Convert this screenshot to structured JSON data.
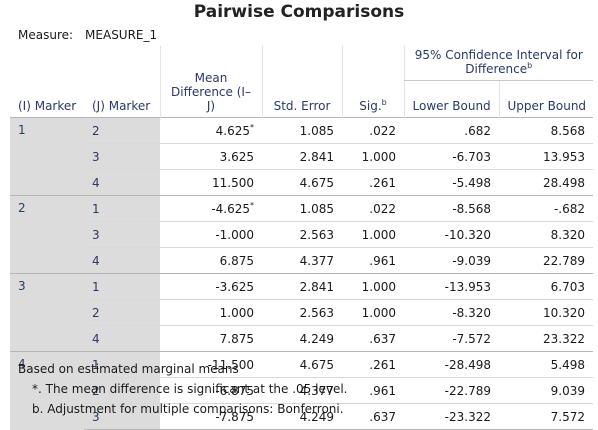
{
  "title": "Pairwise Comparisons",
  "measure": {
    "label": "Measure:",
    "value": "MEASURE_1"
  },
  "headers": {
    "i_marker": "(I) Marker",
    "j_marker": "(J) Marker",
    "mean_diff": "Mean Difference (I–J)",
    "std_error": "Std. Error",
    "sig": "Sig.",
    "sig_sup": "b",
    "ci": "95% Confidence Interval for Difference",
    "ci_sup": "b",
    "lower": "Lower Bound",
    "upper": "Upper Bound"
  },
  "groups": [
    {
      "i": "1",
      "rows": [
        {
          "j": "2",
          "mean": "4.625",
          "mark": "*",
          "se": "1.085",
          "sig": ".022",
          "lower": ".682",
          "upper": "8.568"
        },
        {
          "j": "3",
          "mean": "3.625",
          "mark": "",
          "se": "2.841",
          "sig": "1.000",
          "lower": "-6.703",
          "upper": "13.953"
        },
        {
          "j": "4",
          "mean": "11.500",
          "mark": "",
          "se": "4.675",
          "sig": ".261",
          "lower": "-5.498",
          "upper": "28.498"
        }
      ]
    },
    {
      "i": "2",
      "rows": [
        {
          "j": "1",
          "mean": "-4.625",
          "mark": "*",
          "se": "1.085",
          "sig": ".022",
          "lower": "-8.568",
          "upper": "-.682"
        },
        {
          "j": "3",
          "mean": "-1.000",
          "mark": "",
          "se": "2.563",
          "sig": "1.000",
          "lower": "-10.320",
          "upper": "8.320"
        },
        {
          "j": "4",
          "mean": "6.875",
          "mark": "",
          "se": "4.377",
          "sig": ".961",
          "lower": "-9.039",
          "upper": "22.789"
        }
      ]
    },
    {
      "i": "3",
      "rows": [
        {
          "j": "1",
          "mean": "-3.625",
          "mark": "",
          "se": "2.841",
          "sig": "1.000",
          "lower": "-13.953",
          "upper": "6.703"
        },
        {
          "j": "2",
          "mean": "1.000",
          "mark": "",
          "se": "2.563",
          "sig": "1.000",
          "lower": "-8.320",
          "upper": "10.320"
        },
        {
          "j": "4",
          "mean": "7.875",
          "mark": "",
          "se": "4.249",
          "sig": ".637",
          "lower": "-7.572",
          "upper": "23.322"
        }
      ]
    },
    {
      "i": "4",
      "rows": [
        {
          "j": "1",
          "mean": "-11.500",
          "mark": "",
          "se": "4.675",
          "sig": ".261",
          "lower": "-28.498",
          "upper": "5.498"
        },
        {
          "j": "2",
          "mean": "-6.875",
          "mark": "",
          "se": "4.377",
          "sig": ".961",
          "lower": "-22.789",
          "upper": "9.039"
        },
        {
          "j": "3",
          "mean": "-7.875",
          "mark": "",
          "se": "4.249",
          "sig": ".637",
          "lower": "-23.322",
          "upper": "7.572"
        }
      ]
    }
  ],
  "footnotes": {
    "basis": "Based on estimated marginal means",
    "star": "*. The mean difference is significant at the .05 level.",
    "b": "b. Adjustment for multiple comparisons: Bonferroni."
  }
}
